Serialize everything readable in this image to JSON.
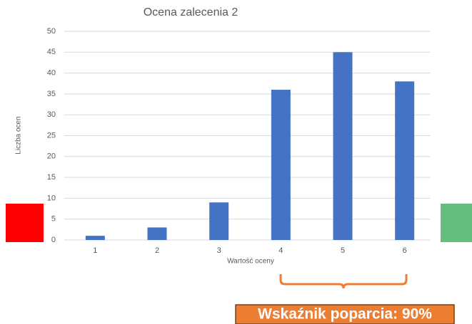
{
  "chart_data": {
    "type": "bar",
    "title": "Ocena zalecenia 2",
    "x_label": "Wartość oceny",
    "y_label": "Liczba ocen",
    "categories": [
      "1",
      "2",
      "3",
      "4",
      "5",
      "6"
    ],
    "values": [
      1,
      3,
      9,
      36,
      45,
      38
    ],
    "color": "#4472c4",
    "ylim": [
      0,
      50
    ],
    "yticks": [
      0,
      5,
      10,
      15,
      20,
      25,
      30,
      35,
      40,
      45,
      50
    ],
    "grid": true,
    "annotation": "Wskaźnik poparcia: 90%"
  }
}
